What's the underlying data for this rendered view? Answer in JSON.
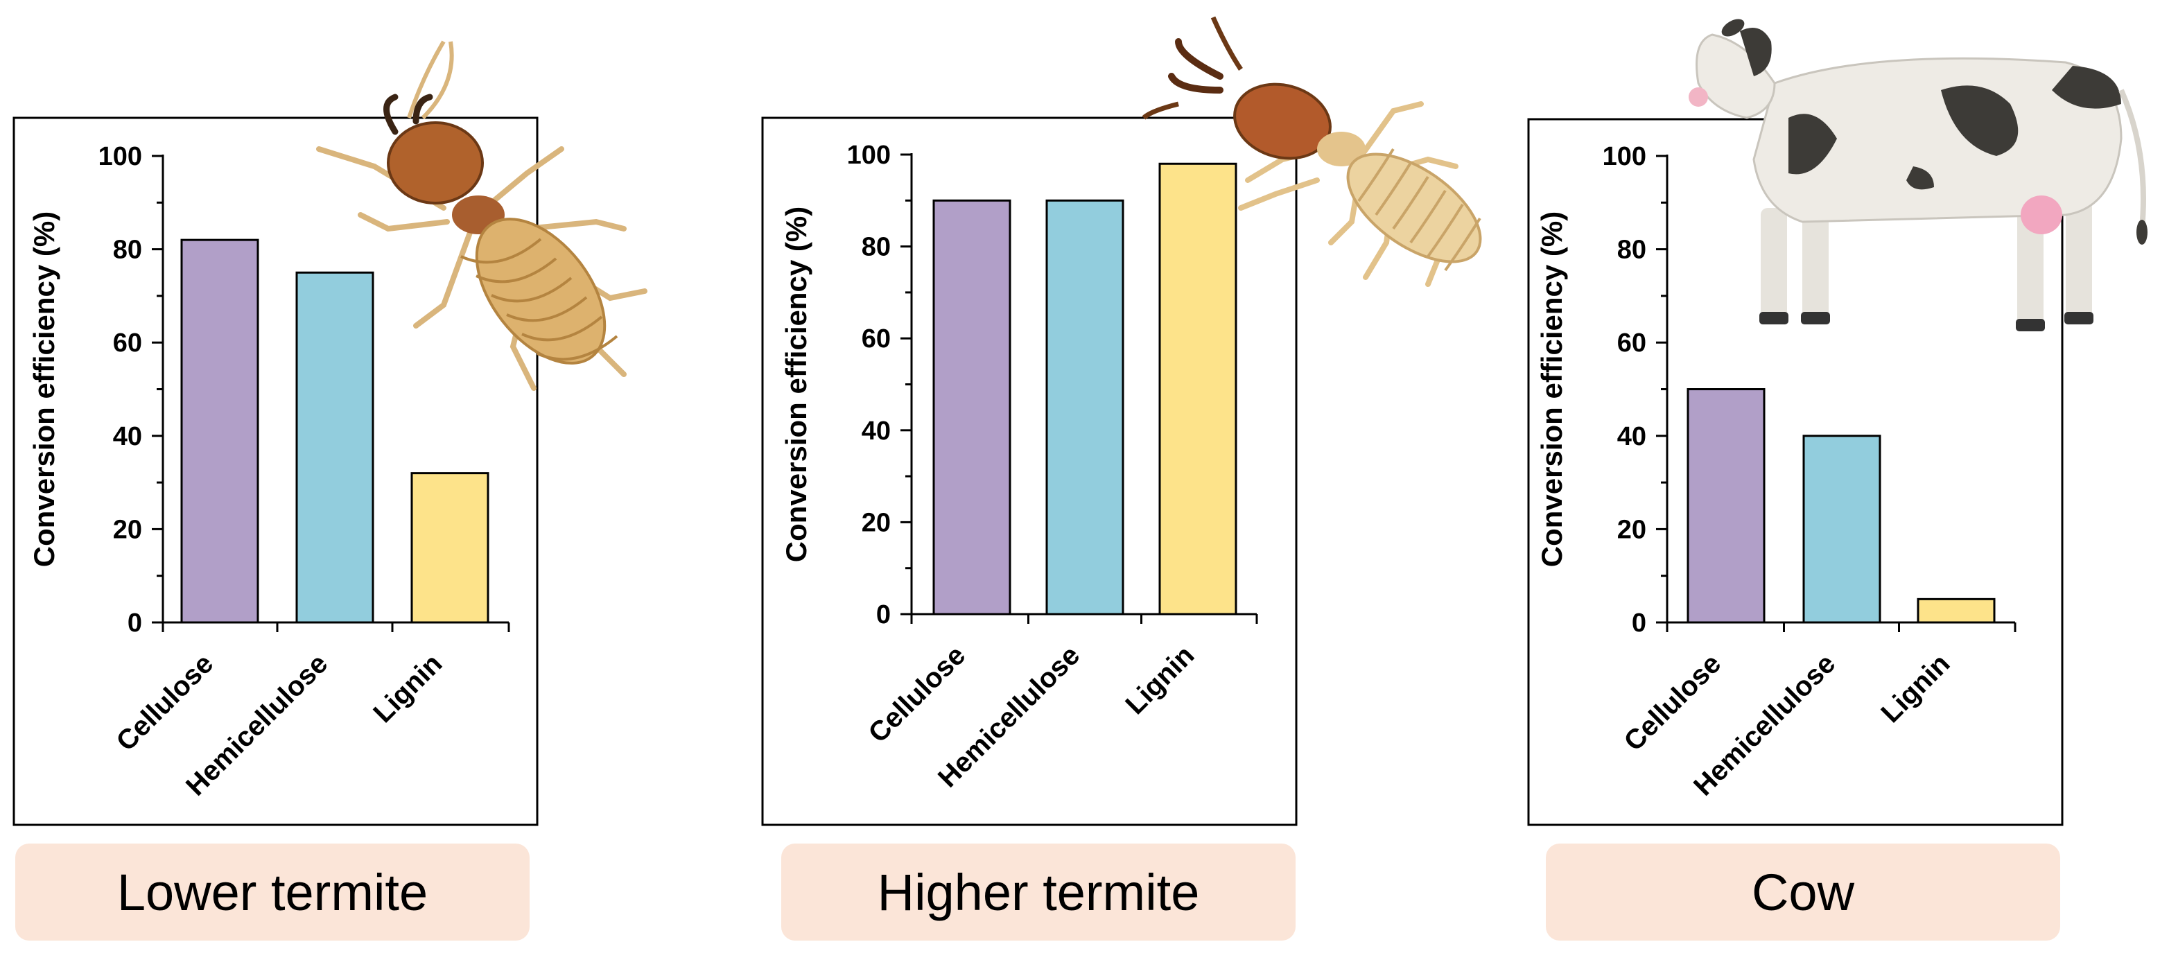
{
  "colors": {
    "cellulose": "#b19fc8",
    "hemicellulose": "#92cddd",
    "lignin": "#fde38a",
    "label_bg": "#fbe5d8"
  },
  "panels": [
    {
      "label": "Lower termite",
      "icon": "lower-termite-illustration",
      "chart_data": {
        "type": "bar",
        "categories": [
          "Cellulose",
          "Hemicellulose",
          "Lignin"
        ],
        "values": [
          82,
          75,
          32
        ],
        "ylabel": "Conversion efficiency (%)",
        "ylim": [
          0,
          100
        ],
        "yticks": [
          "0",
          "20",
          "40",
          "60",
          "80",
          "100"
        ]
      }
    },
    {
      "label": "Higher termite",
      "icon": "higher-termite-illustration",
      "chart_data": {
        "type": "bar",
        "categories": [
          "Cellulose",
          "Hemicellulose",
          "Lignin"
        ],
        "values": [
          90,
          90,
          98
        ],
        "ylabel": "Conversion efficiency (%)",
        "ylim": [
          0,
          100
        ],
        "yticks": [
          "0",
          "20",
          "40",
          "60",
          "80",
          "100"
        ]
      }
    },
    {
      "label": "Cow",
      "icon": "cow-illustration",
      "chart_data": {
        "type": "bar",
        "categories": [
          "Cellulose",
          "Hemicellulose",
          "Lignin"
        ],
        "values": [
          50,
          40,
          5
        ],
        "ylabel": "Conversion efficiency (%)",
        "ylim": [
          0,
          100
        ],
        "yticks": [
          "0",
          "20",
          "40",
          "60",
          "80",
          "100"
        ]
      }
    }
  ]
}
